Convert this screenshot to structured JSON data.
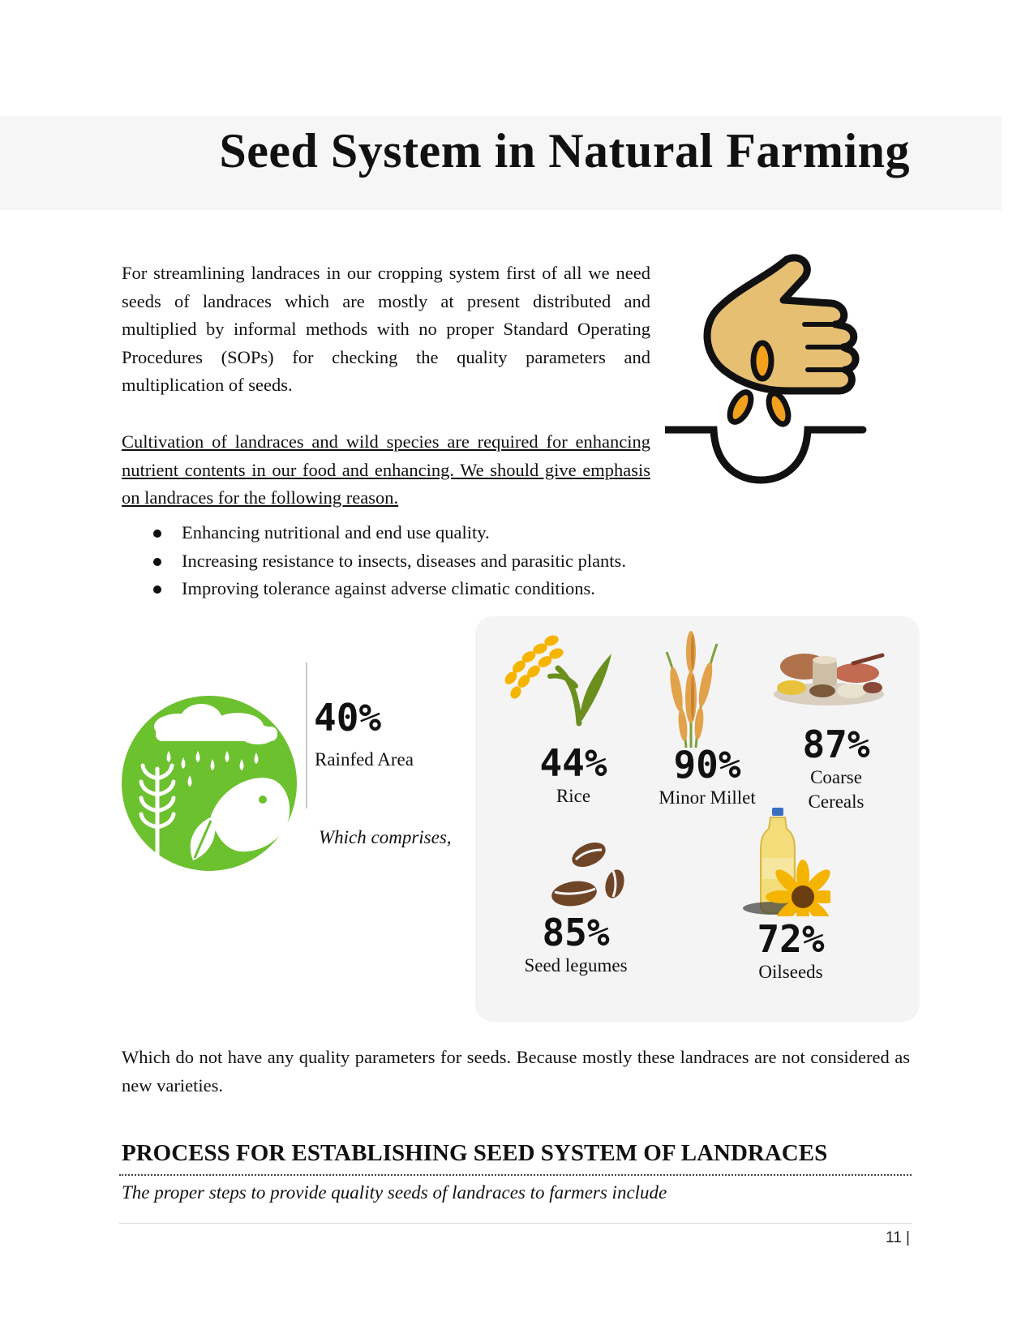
{
  "header": {
    "title": "Seed System in Natural Farming"
  },
  "intro": {
    "paragraph": "For streamlining landraces in our cropping system first of all we need seeds of landraces which are mostly at present distributed and multiplied by informal methods with no proper Standard Operating Procedures (SOPs) for checking the quality parameters and multiplication of seeds.",
    "emphasis": "Cultivation of landraces and wild species are required for enhancing nutrient contents in our food and enhancing. We should give emphasis on landraces for the following reason.",
    "bullets": [
      "Enhancing nutritional and end use quality.",
      "Increasing resistance to insects, diseases and parasitic plants.",
      "Improving tolerance against adverse climatic conditions."
    ]
  },
  "rainfed": {
    "percent": "40%",
    "label": "Rainfed Area",
    "comprises": "Which comprises,"
  },
  "crops": [
    {
      "percent": "44%",
      "label": "Rice",
      "icon": "rice-icon"
    },
    {
      "percent": "90%",
      "label": "Minor Millet",
      "icon": "millet-icon"
    },
    {
      "percent": "87%",
      "label_line1": "Coarse",
      "label_line2": "Cereals",
      "icon": "cereals-icon"
    },
    {
      "percent": "85%",
      "label": "Seed legumes",
      "icon": "legume-seeds-icon"
    },
    {
      "percent": "72%",
      "label": "Oilseeds",
      "icon": "oilseeds-icon"
    }
  ],
  "closing": "Which do not have any quality parameters for seeds. Because mostly these landraces are not considered as new varieties.",
  "section": {
    "heading": "PROCESS FOR ESTABLISHING SEED SYSTEM OF LANDRACES",
    "subheading": "The proper steps to provide quality seeds of landraces to farmers include"
  },
  "footer": {
    "page": "11 |"
  },
  "colors": {
    "green": "#6cc12f",
    "hand": "#e6bf72",
    "seed": "#f2a11e",
    "bean": "#6e4526",
    "title_band": "#f7f6f6"
  }
}
